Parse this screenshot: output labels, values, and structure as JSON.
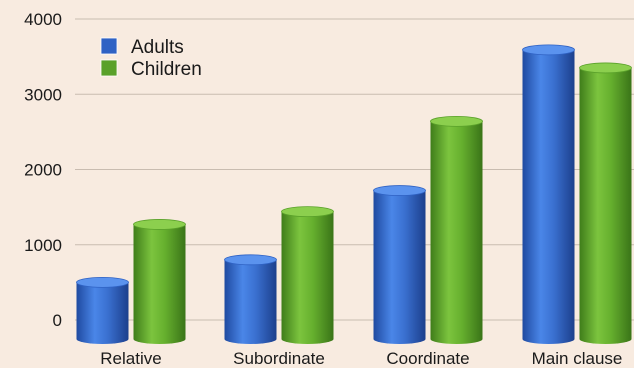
{
  "chart_data": {
    "type": "bar",
    "title": "",
    "xlabel": "",
    "ylabel": "",
    "categories": [
      "Relative",
      "Subordinate",
      "Coordinate",
      "Main clause"
    ],
    "series": [
      {
        "name": "Adults",
        "values": [
          500,
          800,
          1720,
          3590
        ],
        "color": "#2f62c4"
      },
      {
        "name": "Children",
        "values": [
          1270,
          1440,
          2640,
          3350
        ],
        "color": "#5aa12a"
      }
    ],
    "ylim": [
      0,
      4000
    ],
    "yticks": [
      0,
      1000,
      2000,
      3000,
      4000
    ],
    "grid": true,
    "legend_position": "top-left",
    "style": "3d-cylinder"
  }
}
